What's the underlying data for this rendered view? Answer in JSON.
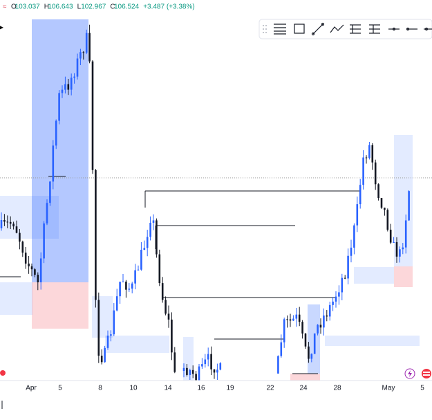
{
  "header": {
    "ohlc": [
      {
        "label": "O",
        "value": "103.037"
      },
      {
        "label": "H",
        "value": "106.643"
      },
      {
        "label": "L",
        "value": "102.967"
      },
      {
        "label": "C",
        "value": "106.524"
      }
    ],
    "change": "+3.487 (+3.38%)"
  },
  "x_axis": {
    "labels": [
      "Apr",
      "5",
      "8",
      "10",
      "14",
      "16",
      "19",
      "22",
      "24",
      "28",
      "May",
      "5"
    ]
  }
}
